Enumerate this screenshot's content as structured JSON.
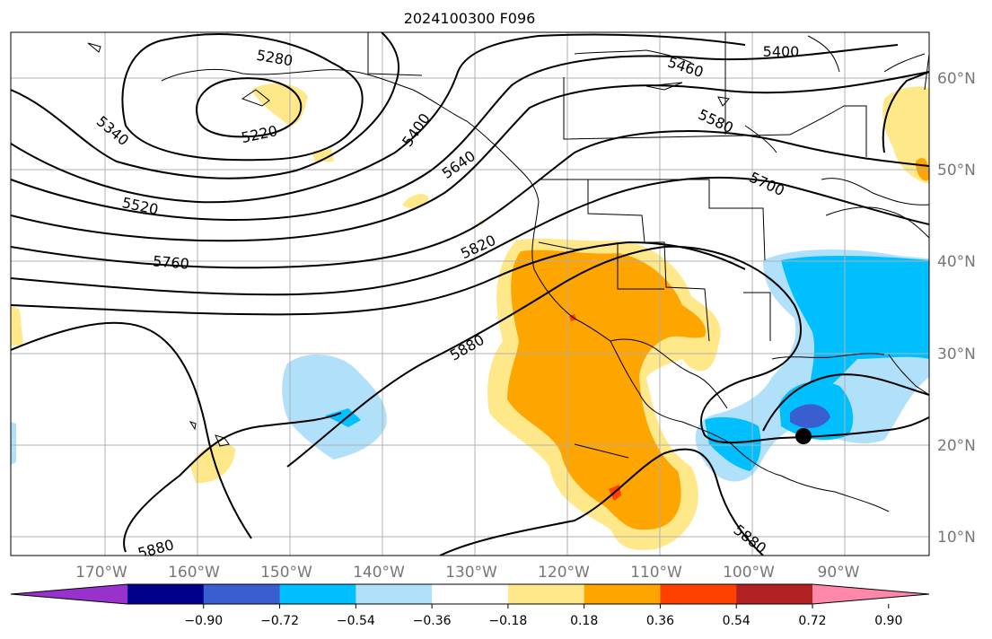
{
  "title": "2024100300 F096",
  "map": {
    "lon_range": [
      -180,
      -81
    ],
    "lat_range": [
      8,
      65
    ],
    "lat_labels": [
      "60°N",
      "50°N",
      "40°N",
      "30°N",
      "20°N",
      "10°N"
    ],
    "lon_labels": [
      "170°W",
      "160°W",
      "150°W",
      "140°W",
      "130°W",
      "120°W",
      "110°W",
      "100°W",
      "90°W"
    ],
    "marker": {
      "lon": -93.5,
      "lat": 20.8
    }
  },
  "contours": {
    "labels": [
      "5280",
      "5220",
      "5340",
      "5400",
      "5460",
      "5400",
      "5580",
      "5640",
      "5700",
      "5520",
      "5760",
      "5820",
      "5880",
      "5880",
      "5880"
    ]
  },
  "colorbar": {
    "ticks": [
      "−0.90",
      "−0.72",
      "−0.54",
      "−0.36",
      "−0.18",
      "0.18",
      "0.36",
      "0.54",
      "0.72",
      "0.90"
    ],
    "colors": [
      "#9932cc",
      "#00008b",
      "#3a5ed0",
      "#00bfff",
      "#b0e0fa",
      "#ffffff",
      "#ffe88a",
      "#ffa500",
      "#ff4000",
      "#b22222",
      "#ff88aa"
    ]
  }
}
